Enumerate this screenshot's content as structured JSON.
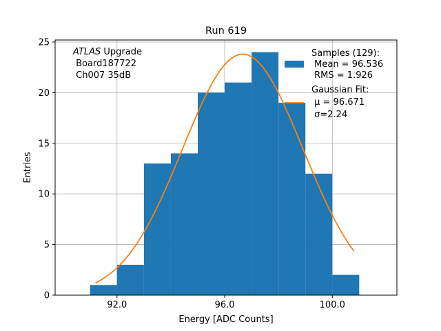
{
  "chart_data": {
    "type": "bar",
    "title": "Run 619",
    "xlabel": "Energy [ADC Counts]",
    "ylabel": "Entries",
    "xlim": [
      89.7,
      102.4
    ],
    "ylim": [
      0,
      25.2
    ],
    "xticks": [
      92.0,
      96.0,
      100.0
    ],
    "xtick_labels": [
      "92.0",
      "96.0",
      "100.0"
    ],
    "yticks": [
      0,
      5,
      10,
      15,
      20,
      25
    ],
    "ytick_labels": [
      "0",
      "5",
      "10",
      "15",
      "20",
      "25"
    ],
    "grid": true,
    "histogram": {
      "name": "Samples",
      "color": "#1f77b4",
      "bins": [
        {
          "left": 91.0,
          "right": 92.0,
          "count": 1
        },
        {
          "left": 92.0,
          "right": 93.0,
          "count": 3
        },
        {
          "left": 93.0,
          "right": 94.0,
          "count": 13
        },
        {
          "left": 94.0,
          "right": 95.0,
          "count": 14
        },
        {
          "left": 95.0,
          "right": 96.0,
          "count": 20
        },
        {
          "left": 96.0,
          "right": 97.0,
          "count": 21
        },
        {
          "left": 97.0,
          "right": 98.0,
          "count": 24
        },
        {
          "left": 98.0,
          "right": 99.0,
          "count": 19
        },
        {
          "left": 99.0,
          "right": 100.0,
          "count": 12
        },
        {
          "left": 100.0,
          "right": 101.0,
          "count": 2
        }
      ]
    },
    "fit": {
      "name": "Gaussian Fit",
      "color": "#ff7f0e",
      "amplitude": 23.8,
      "mu": 96.671,
      "sigma": 2.24,
      "x_range": [
        91.2,
        100.8
      ]
    },
    "legend": {
      "position": "top-right",
      "entries": [
        {
          "lines": [
            "Samples (129):",
            " Mean = 96.536",
            " RMS = 1.926"
          ]
        },
        {
          "lines": [
            "Gaussian Fit:",
            " μ = 96.671",
            " σ=2.24"
          ]
        }
      ]
    },
    "annotation": {
      "position": "top-left",
      "italic": "ATLAS",
      "rest": " Upgrade",
      "lines": [
        " Board187722",
        " Ch007 35dB"
      ]
    }
  }
}
